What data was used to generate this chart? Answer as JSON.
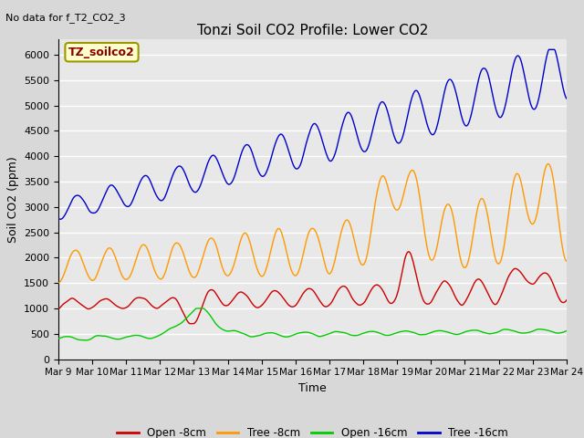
{
  "title": "Tonzi Soil CO2 Profile: Lower CO2",
  "subtitle": "No data for f_T2_CO2_3",
  "ylabel": "Soil CO2 (ppm)",
  "xlabel": "Time",
  "box_label": "TZ_soilco2",
  "ylim": [
    0,
    6300
  ],
  "yticks": [
    0,
    500,
    1000,
    1500,
    2000,
    2500,
    3000,
    3500,
    4000,
    4500,
    5000,
    5500,
    6000
  ],
  "x_tick_labels": [
    "Mar 9",
    "Mar 10",
    "Mar 11",
    "Mar 12",
    "Mar 13",
    "Mar 14",
    "Mar 15",
    "Mar 16",
    "Mar 17",
    "Mar 18",
    "Mar 19",
    "Mar 20",
    "Mar 21",
    "Mar 22",
    "Mar 23",
    "Mar 24"
  ],
  "legend_entries": [
    "Open -8cm",
    "Tree -8cm",
    "Open -16cm",
    "Tree -16cm"
  ],
  "legend_colors": [
    "#cc0000",
    "#ff9900",
    "#00cc00",
    "#0000cc"
  ],
  "bg_color": "#e8e8e8",
  "plot_bg_color": "#e8e8e8",
  "grid_color": "#ffffff"
}
